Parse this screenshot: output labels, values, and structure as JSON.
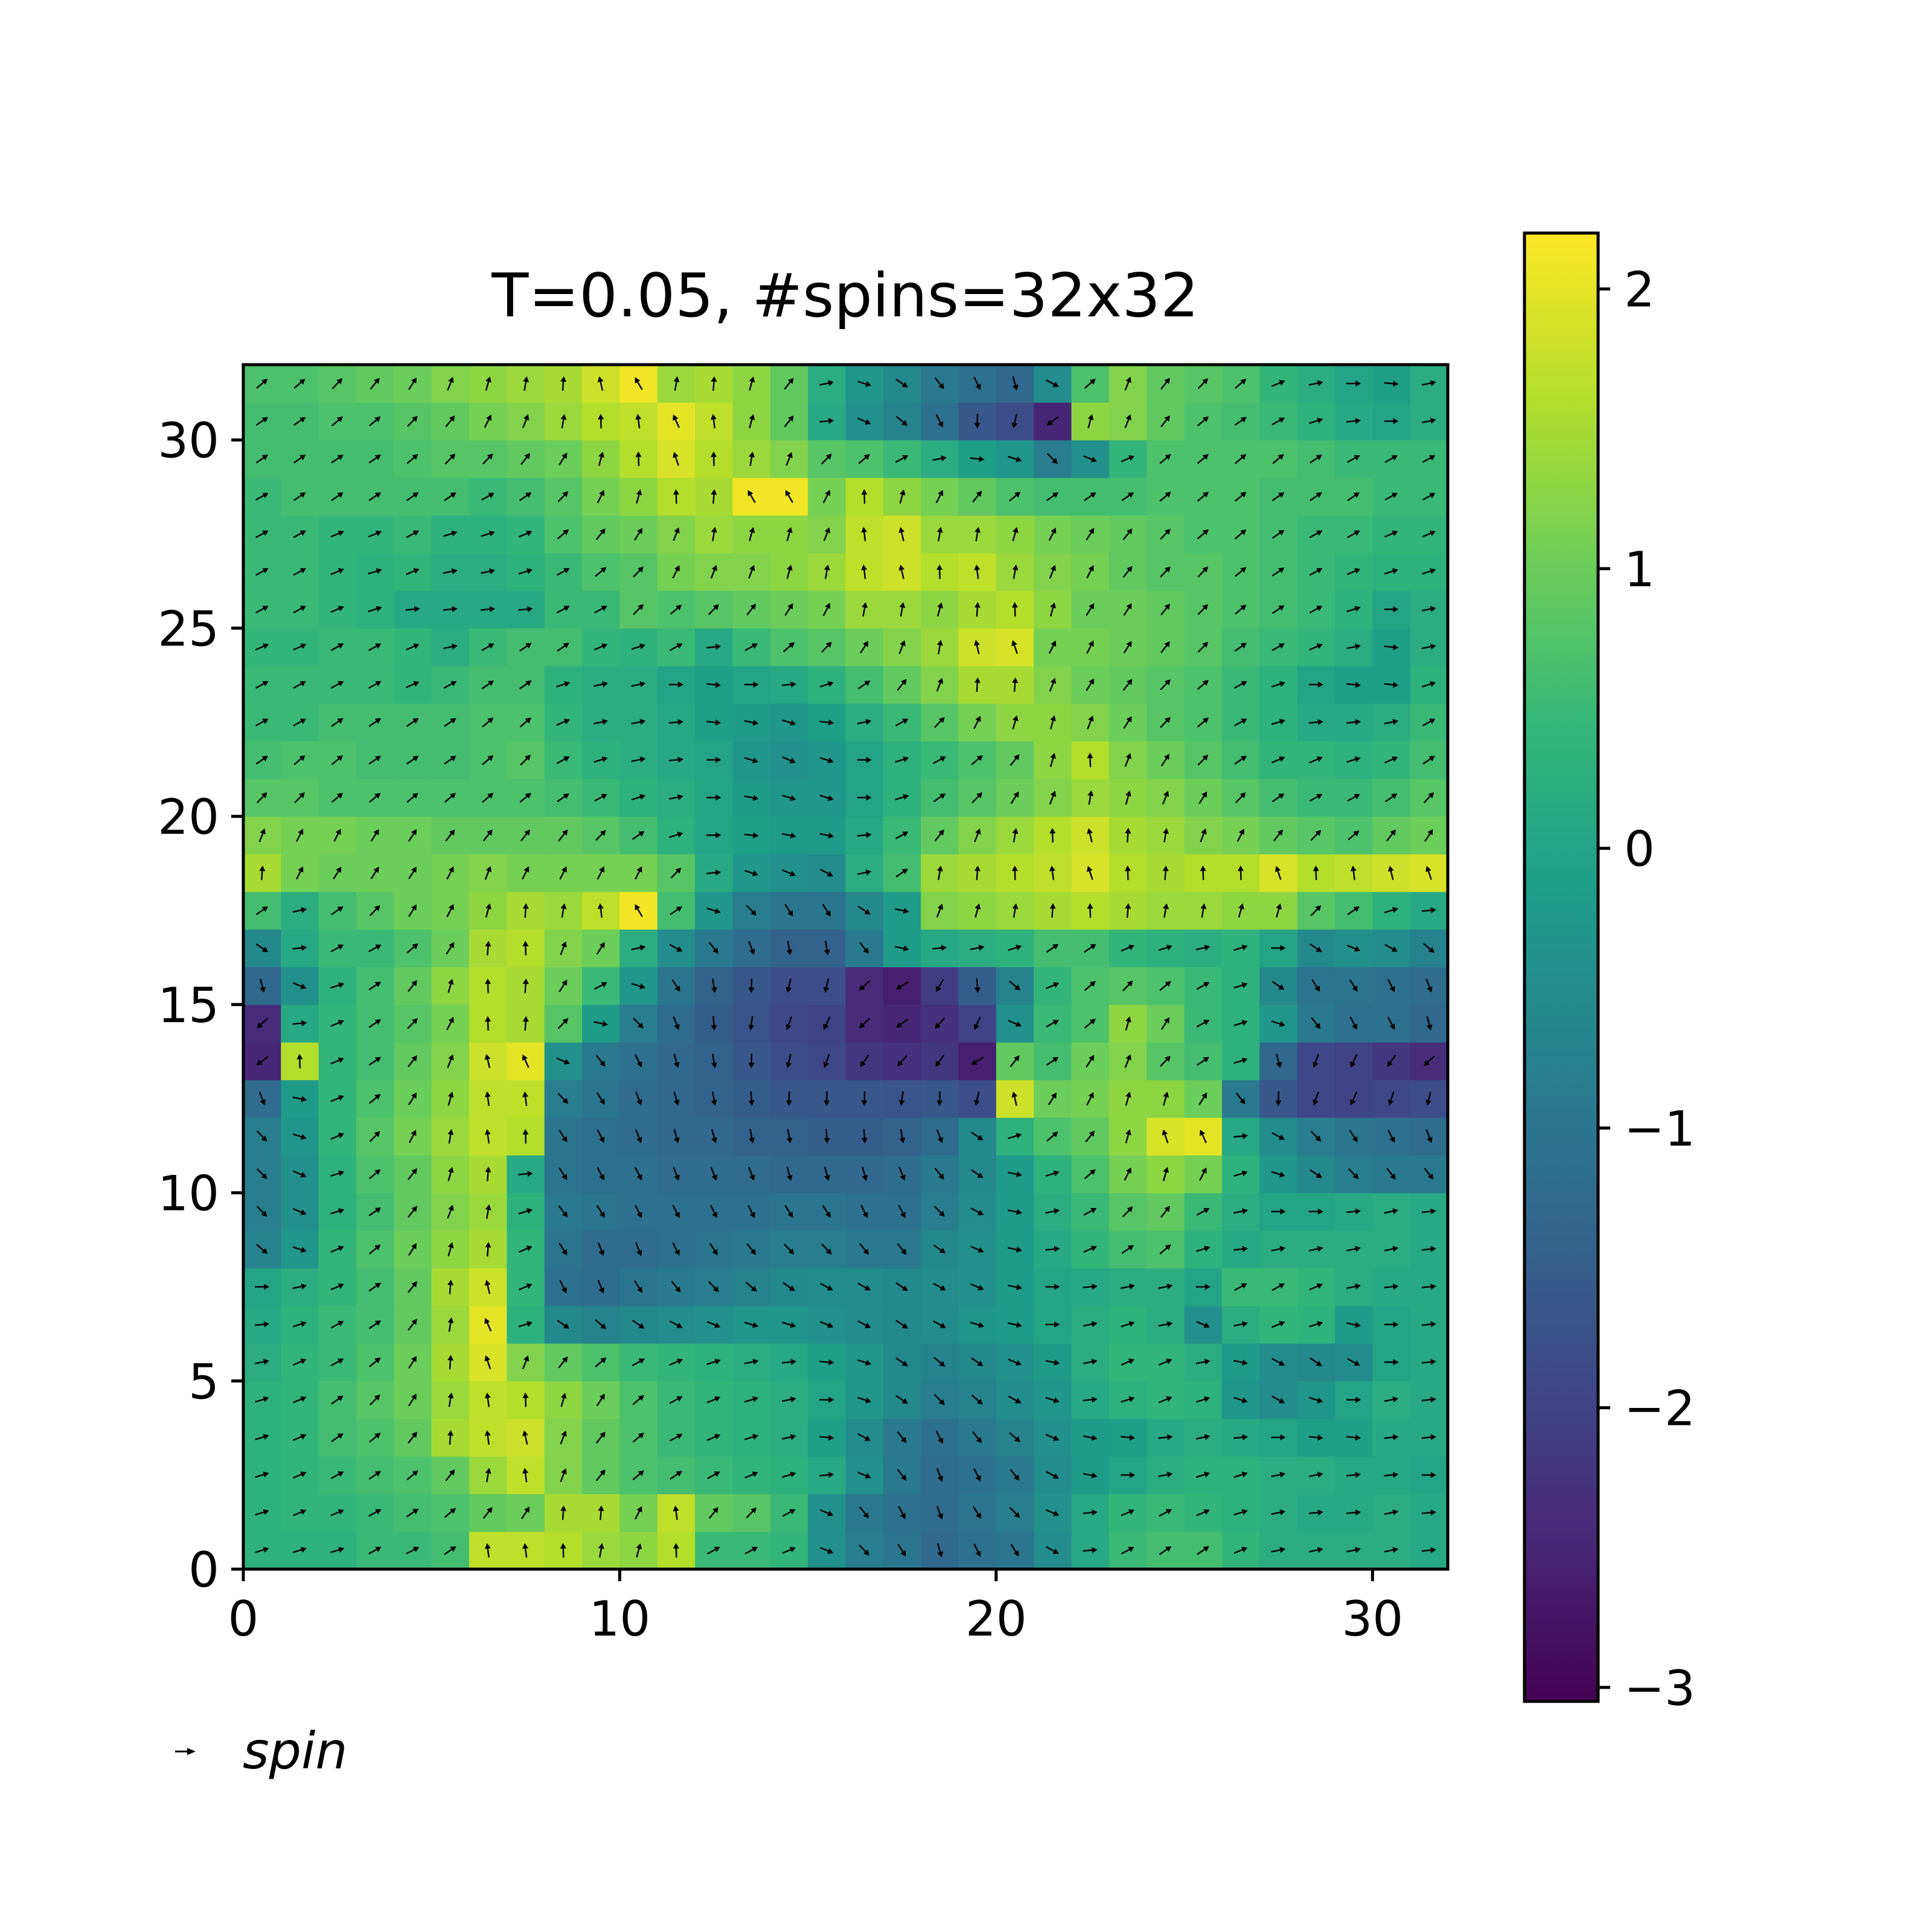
{
  "chart_data": {
    "type": "heatmap",
    "title": "T=0.05, #spins=32x32",
    "xlabel": "",
    "ylabel": "",
    "xlim": [
      0,
      32
    ],
    "ylim": [
      0,
      32
    ],
    "xticks": [
      0,
      10,
      20,
      30
    ],
    "yticks": [
      0,
      5,
      10,
      15,
      20,
      25,
      30
    ],
    "colormap": "viridis",
    "colorbar": {
      "range": [
        -3.05,
        2.2
      ],
      "ticks": [
        2,
        1,
        0,
        -1,
        -2,
        -3
      ],
      "tick_labels": [
        "2",
        "1",
        "0",
        "−1",
        "−2",
        "−3"
      ]
    },
    "legend": {
      "position": "bottom-left, below axes",
      "entries": [
        {
          "label": "spin",
          "marker": "arrow"
        }
      ]
    },
    "grid": false,
    "quiver": {
      "description": "one unit arrow per lattice site, direction = spin angle (same value as the heatmap cell)",
      "color": "#000000"
    },
    "field": {
      "rows": 32,
      "cols": 32,
      "row_order": "bottom-to-top (row 0 is y in [0,1])",
      "cell_values": [
        [
          0.3,
          0.3,
          0.3,
          0.5,
          0.5,
          0.6,
          1.7,
          1.7,
          1.6,
          1.4,
          1.3,
          1.6,
          0.5,
          0.5,
          0.4,
          -0.4,
          -0.8,
          -1.0,
          -1.3,
          -1.1,
          -1.0,
          -0.5,
          0.1,
          0.5,
          0.6,
          0.6,
          0.4,
          0.2,
          0.2,
          0.2,
          0.2,
          0.1
        ],
        [
          0.3,
          0.4,
          0.4,
          0.5,
          0.6,
          0.7,
          0.9,
          1.0,
          1.5,
          1.5,
          1.1,
          1.7,
          0.9,
          0.8,
          0.5,
          -0.4,
          -0.9,
          -1.1,
          -1.2,
          -1.0,
          -0.8,
          -0.4,
          0.1,
          0.4,
          0.5,
          0.4,
          0.3,
          0.2,
          0.1,
          0.1,
          0.2,
          0.1
        ],
        [
          0.3,
          0.4,
          0.5,
          0.6,
          0.7,
          0.9,
          1.4,
          1.7,
          1.2,
          0.9,
          0.7,
          0.6,
          0.5,
          0.4,
          0.3,
          0.1,
          -0.4,
          -0.9,
          -1.2,
          -1.1,
          -0.9,
          -0.5,
          -0.2,
          0.0,
          0.2,
          0.3,
          0.3,
          0.2,
          0.2,
          0.1,
          0.1,
          0.0
        ],
        [
          0.3,
          0.4,
          0.6,
          0.7,
          0.9,
          1.5,
          1.7,
          1.8,
          1.2,
          0.9,
          0.7,
          0.5,
          0.4,
          0.3,
          0.2,
          -0.1,
          -0.5,
          -0.9,
          -1.1,
          -0.9,
          -0.7,
          -0.4,
          -0.2,
          -0.1,
          0.1,
          0.2,
          0.1,
          0.0,
          -0.1,
          -0.1,
          0.1,
          0.1
        ],
        [
          0.3,
          0.4,
          0.6,
          0.8,
          1.0,
          1.4,
          1.7,
          1.6,
          1.3,
          1.0,
          0.7,
          0.5,
          0.4,
          0.3,
          0.2,
          0.0,
          -0.3,
          -0.6,
          -0.8,
          -0.7,
          -0.5,
          -0.3,
          0.1,
          0.3,
          0.4,
          0.3,
          -0.3,
          -0.5,
          -0.3,
          0.0,
          0.2,
          0.1
        ],
        [
          0.2,
          0.4,
          0.5,
          0.7,
          1.0,
          1.5,
          1.9,
          1.2,
          0.9,
          0.7,
          0.5,
          0.4,
          0.3,
          0.2,
          0.1,
          -0.1,
          -0.3,
          -0.6,
          -0.7,
          -0.6,
          -0.4,
          -0.2,
          0.2,
          0.4,
          0.4,
          0.2,
          -0.2,
          -0.5,
          -0.6,
          -0.5,
          0.0,
          0.1
        ],
        [
          0.1,
          0.3,
          0.5,
          0.6,
          0.9,
          1.4,
          2.0,
          0.3,
          -0.6,
          -0.7,
          -0.6,
          -0.5,
          -0.4,
          -0.3,
          -0.3,
          -0.4,
          -0.5,
          -0.6,
          -0.5,
          -0.3,
          -0.2,
          0.0,
          0.2,
          0.3,
          0.2,
          -0.4,
          0.2,
          0.4,
          0.3,
          -0.2,
          0.0,
          0.1
        ],
        [
          0.0,
          0.2,
          0.4,
          0.6,
          0.9,
          1.5,
          1.8,
          0.4,
          -1.1,
          -1.2,
          -1.0,
          -0.9,
          -0.8,
          -0.7,
          -0.6,
          -0.5,
          -0.5,
          -0.6,
          -0.5,
          -0.4,
          -0.2,
          0.0,
          0.1,
          0.2,
          0.2,
          0.0,
          0.5,
          0.5,
          0.4,
          0.2,
          0.1,
          0.1
        ],
        [
          -0.7,
          -0.3,
          0.4,
          0.7,
          1.0,
          1.3,
          1.5,
          0.4,
          -1.0,
          -1.2,
          -1.2,
          -1.1,
          -1.0,
          -0.9,
          -0.8,
          -0.8,
          -0.9,
          -0.9,
          -0.6,
          -0.4,
          -0.2,
          0.1,
          0.4,
          0.6,
          0.7,
          0.3,
          0.1,
          0.2,
          0.2,
          0.2,
          0.2,
          0.1
        ],
        [
          -0.8,
          -0.4,
          0.3,
          0.6,
          0.9,
          1.2,
          1.4,
          0.3,
          -0.9,
          -1.0,
          -1.1,
          -1.1,
          -1.1,
          -1.1,
          -1.0,
          -1.0,
          -1.1,
          -1.1,
          -0.8,
          -0.5,
          -0.2,
          0.2,
          0.5,
          0.8,
          0.9,
          0.5,
          0.2,
          0.0,
          0.0,
          0.1,
          0.2,
          0.1
        ],
        [
          -0.8,
          -0.4,
          0.3,
          0.7,
          0.9,
          1.3,
          1.5,
          0.1,
          -1.0,
          -1.1,
          -1.1,
          -1.2,
          -1.2,
          -1.2,
          -1.3,
          -1.3,
          -1.3,
          -1.2,
          -0.9,
          -0.6,
          -0.2,
          0.3,
          0.7,
          1.1,
          1.3,
          1.1,
          0.3,
          -0.3,
          -0.6,
          -0.8,
          -0.9,
          -0.9
        ],
        [
          -0.8,
          -0.3,
          0.4,
          0.8,
          1.1,
          1.4,
          1.7,
          1.6,
          -1.0,
          -1.1,
          -1.2,
          -1.3,
          -1.3,
          -1.4,
          -1.4,
          -1.5,
          -1.5,
          -1.4,
          -1.2,
          -0.6,
          0.3,
          0.7,
          0.9,
          1.3,
          1.9,
          2.0,
          0.1,
          -0.5,
          -0.8,
          -1.0,
          -1.1,
          -1.2
        ],
        [
          -1.2,
          -0.2,
          0.4,
          0.7,
          1.0,
          1.3,
          1.7,
          1.7,
          -0.8,
          -1.0,
          -1.2,
          -1.3,
          -1.4,
          -1.5,
          -1.6,
          -1.6,
          -1.6,
          -1.7,
          -1.6,
          -1.8,
          1.8,
          1.0,
          1.1,
          1.3,
          1.3,
          1.0,
          -0.9,
          -1.6,
          -1.9,
          -2.0,
          -1.9,
          -1.8
        ],
        [
          -2.5,
          1.6,
          0.4,
          0.6,
          0.9,
          1.2,
          1.8,
          2.0,
          -0.4,
          -0.9,
          -1.1,
          -1.3,
          -1.4,
          -1.6,
          -1.8,
          -1.9,
          -2.2,
          -2.3,
          -2.2,
          -2.6,
          0.9,
          0.6,
          1.0,
          1.2,
          0.8,
          0.6,
          0.3,
          -1.3,
          -1.9,
          -2.0,
          -2.2,
          -2.4
        ],
        [
          -2.4,
          0.1,
          0.4,
          0.6,
          0.8,
          1.1,
          1.6,
          1.5,
          0.8,
          -0.2,
          -0.8,
          -1.2,
          -1.5,
          -1.7,
          -1.9,
          -2.0,
          -2.4,
          -2.5,
          -2.3,
          -2.0,
          -0.4,
          0.5,
          0.7,
          1.3,
          1.0,
          0.5,
          0.3,
          -0.3,
          -0.9,
          -1.1,
          -1.1,
          -1.3
        ],
        [
          -1.3,
          -0.4,
          0.3,
          0.6,
          0.9,
          1.3,
          1.6,
          1.5,
          1.0,
          0.5,
          -0.3,
          -1.0,
          -1.4,
          -1.6,
          -1.8,
          -1.8,
          -2.4,
          -2.6,
          -2.1,
          -1.5,
          -0.7,
          0.4,
          0.7,
          0.8,
          0.7,
          0.5,
          0.3,
          -0.6,
          -1.0,
          -1.0,
          -1.1,
          -1.2
        ],
        [
          -0.6,
          0.1,
          0.5,
          0.5,
          0.7,
          1.0,
          1.5,
          1.6,
          1.2,
          1.0,
          0.2,
          -0.5,
          -0.9,
          -1.2,
          -1.4,
          -1.4,
          -0.9,
          -0.2,
          0.1,
          0.2,
          0.3,
          0.6,
          0.6,
          0.4,
          0.3,
          0.2,
          0.3,
          0.0,
          -0.6,
          -0.4,
          -0.5,
          -0.7
        ],
        [
          0.6,
          0.2,
          0.6,
          0.8,
          1.0,
          1.1,
          1.3,
          1.5,
          1.4,
          1.7,
          2.1,
          0.6,
          -0.3,
          -0.8,
          -1.0,
          -1.0,
          -0.6,
          -0.2,
          1.2,
          1.3,
          1.4,
          1.5,
          1.6,
          1.5,
          1.4,
          1.4,
          1.3,
          1.3,
          0.8,
          0.6,
          0.3,
          0.1
        ],
        [
          1.5,
          1.1,
          1.0,
          1.0,
          1.0,
          1.1,
          1.2,
          1.1,
          1.1,
          1.1,
          1.1,
          0.8,
          0.1,
          -0.3,
          -0.4,
          -0.5,
          0.2,
          0.6,
          1.4,
          1.5,
          1.6,
          1.7,
          1.9,
          1.6,
          1.5,
          1.6,
          1.6,
          1.9,
          1.6,
          1.7,
          1.8,
          1.9
        ],
        [
          1.2,
          1.1,
          1.1,
          1.0,
          1.0,
          0.9,
          0.9,
          0.9,
          0.9,
          0.8,
          0.6,
          0.3,
          0.0,
          -0.1,
          -0.2,
          -0.2,
          0.1,
          0.5,
          0.9,
          1.2,
          1.4,
          1.6,
          1.8,
          1.5,
          1.4,
          1.2,
          1.1,
          0.9,
          0.8,
          0.7,
          0.9,
          1.0
        ],
        [
          0.8,
          0.8,
          0.7,
          0.7,
          0.7,
          0.7,
          0.7,
          0.7,
          0.6,
          0.5,
          0.3,
          0.2,
          0.0,
          -0.2,
          -0.3,
          -0.3,
          0.0,
          0.3,
          0.6,
          0.8,
          1.0,
          1.2,
          1.4,
          1.3,
          1.2,
          1.0,
          0.8,
          0.6,
          0.5,
          0.5,
          0.6,
          0.8
        ],
        [
          0.6,
          0.7,
          0.7,
          0.6,
          0.6,
          0.6,
          0.7,
          0.8,
          0.5,
          0.3,
          0.2,
          0.1,
          0.0,
          -0.3,
          -0.4,
          -0.3,
          0.0,
          0.3,
          0.5,
          0.7,
          0.9,
          1.3,
          1.6,
          1.2,
          1.0,
          0.8,
          0.6,
          0.4,
          0.4,
          0.3,
          0.4,
          0.6
        ],
        [
          0.5,
          0.5,
          0.6,
          0.6,
          0.6,
          0.6,
          0.7,
          0.7,
          0.4,
          0.2,
          0.2,
          0.1,
          -0.1,
          -0.2,
          -0.3,
          -0.1,
          0.2,
          0.5,
          0.8,
          1.1,
          1.3,
          1.3,
          1.2,
          1.0,
          0.8,
          0.7,
          0.5,
          0.3,
          0.1,
          0.1,
          0.2,
          0.5
        ],
        [
          0.5,
          0.5,
          0.5,
          0.5,
          0.4,
          0.5,
          0.6,
          0.6,
          0.3,
          0.2,
          0.2,
          0.0,
          -0.1,
          0.0,
          0.1,
          0.3,
          0.6,
          0.9,
          1.2,
          1.5,
          1.5,
          1.2,
          1.0,
          0.9,
          0.8,
          0.7,
          0.5,
          0.3,
          0.0,
          -0.1,
          -0.1,
          0.3
        ],
        [
          0.4,
          0.4,
          0.5,
          0.5,
          0.4,
          0.2,
          0.5,
          0.6,
          0.6,
          0.4,
          0.3,
          0.5,
          0.1,
          0.5,
          0.7,
          0.8,
          1.0,
          1.2,
          1.4,
          1.8,
          1.9,
          1.1,
          1.1,
          1.0,
          0.9,
          0.8,
          0.6,
          0.5,
          0.4,
          0.2,
          -0.1,
          0.2
        ],
        [
          0.5,
          0.5,
          0.4,
          0.3,
          0.1,
          0.1,
          0.1,
          0.1,
          0.5,
          0.5,
          0.8,
          0.7,
          0.8,
          0.9,
          1.0,
          1.1,
          1.4,
          1.4,
          1.3,
          1.5,
          1.6,
          1.3,
          1.0,
          1.0,
          0.9,
          0.8,
          0.7,
          0.6,
          0.5,
          0.3,
          0.0,
          0.2
        ],
        [
          0.5,
          0.5,
          0.4,
          0.3,
          0.4,
          0.2,
          0.2,
          0.3,
          0.5,
          0.7,
          0.8,
          1.1,
          1.2,
          1.2,
          1.3,
          1.4,
          1.7,
          1.8,
          1.6,
          1.7,
          1.4,
          1.2,
          1.1,
          0.9,
          0.8,
          0.8,
          0.7,
          0.6,
          0.5,
          0.4,
          0.3,
          0.3
        ],
        [
          0.5,
          0.5,
          0.4,
          0.4,
          0.5,
          0.3,
          0.3,
          0.4,
          0.7,
          0.9,
          1.0,
          1.2,
          1.4,
          1.3,
          1.3,
          1.2,
          1.7,
          1.8,
          1.4,
          1.4,
          1.3,
          1.1,
          1.0,
          0.9,
          0.8,
          0.7,
          0.7,
          0.6,
          0.5,
          0.5,
          0.4,
          0.4
        ],
        [
          0.5,
          0.6,
          0.6,
          0.6,
          0.6,
          0.6,
          0.5,
          0.6,
          0.8,
          1.1,
          1.3,
          1.6,
          1.5,
          2.1,
          2.1,
          1.1,
          1.6,
          1.3,
          1.1,
          0.9,
          0.7,
          0.6,
          0.6,
          0.6,
          0.7,
          0.7,
          0.7,
          0.6,
          0.6,
          0.6,
          0.5,
          0.5
        ],
        [
          0.6,
          0.6,
          0.6,
          0.6,
          0.7,
          0.8,
          0.8,
          0.9,
          1.0,
          1.3,
          1.6,
          1.9,
          1.6,
          1.4,
          1.2,
          0.8,
          0.7,
          0.5,
          0.2,
          -0.1,
          -0.3,
          -0.8,
          -0.4,
          0.4,
          0.7,
          0.7,
          0.7,
          0.7,
          0.6,
          0.5,
          0.5,
          0.5
        ],
        [
          0.6,
          0.6,
          0.7,
          0.7,
          0.8,
          0.9,
          1.1,
          1.2,
          1.4,
          1.6,
          1.7,
          2.0,
          1.7,
          1.3,
          0.9,
          0.1,
          -0.4,
          -0.7,
          -1.1,
          -1.6,
          -1.8,
          -2.5,
          1.3,
          1.2,
          0.9,
          0.7,
          0.6,
          0.5,
          0.3,
          0.1,
          0.0,
          0.2
        ],
        [
          0.7,
          0.7,
          0.8,
          0.9,
          1.0,
          1.2,
          1.3,
          1.4,
          1.5,
          1.8,
          2.1,
          1.4,
          1.5,
          1.3,
          0.9,
          0.2,
          -0.3,
          -0.6,
          -0.9,
          -1.1,
          -1.3,
          -0.5,
          0.7,
          1.2,
          0.9,
          0.8,
          0.7,
          0.4,
          0.2,
          0.0,
          -0.1,
          0.2
        ]
      ]
    }
  }
}
